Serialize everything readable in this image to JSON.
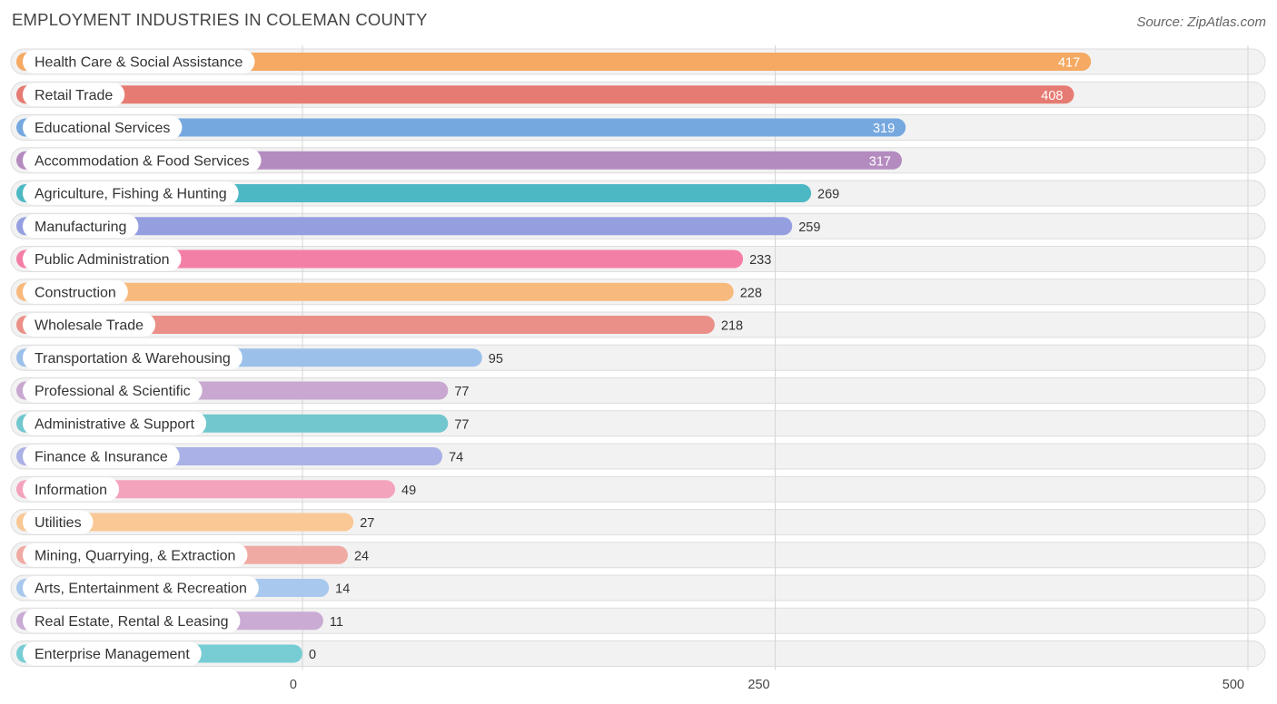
{
  "chart_data": {
    "type": "bar",
    "orientation": "horizontal",
    "title": "EMPLOYMENT INDUSTRIES IN COLEMAN COUNTY",
    "source": "Source: ZipAtlas.com",
    "xlim": [
      0,
      500
    ],
    "ticks": [
      "0",
      "250",
      "500"
    ],
    "tick_values": [
      0,
      250,
      500
    ],
    "categories": [
      "Health Care & Social Assistance",
      "Retail Trade",
      "Educational Services",
      "Accommodation & Food Services",
      "Agriculture, Fishing & Hunting",
      "Manufacturing",
      "Public Administration",
      "Construction",
      "Wholesale Trade",
      "Transportation & Warehousing",
      "Professional & Scientific",
      "Administrative & Support",
      "Finance & Insurance",
      "Information",
      "Utilities",
      "Mining, Quarrying, & Extraction",
      "Arts, Entertainment & Recreation",
      "Real Estate, Rental & Leasing",
      "Enterprise Management"
    ],
    "values": [
      417,
      408,
      319,
      317,
      269,
      259,
      233,
      228,
      218,
      95,
      77,
      77,
      74,
      49,
      27,
      24,
      14,
      11,
      0
    ],
    "colors": [
      "#f5a962",
      "#e57b72",
      "#76a8e0",
      "#b48bbf",
      "#4cb8c4",
      "#959fe0",
      "#f47fa6",
      "#f8b97c",
      "#eb9088",
      "#9bc0ea",
      "#c8a8d0",
      "#72c7ce",
      "#aab1e6",
      "#f4a3bd",
      "#f9c894",
      "#f0aaa4",
      "#a8c8ee",
      "#c9abd4",
      "#78cdd4"
    ],
    "grid": true
  }
}
